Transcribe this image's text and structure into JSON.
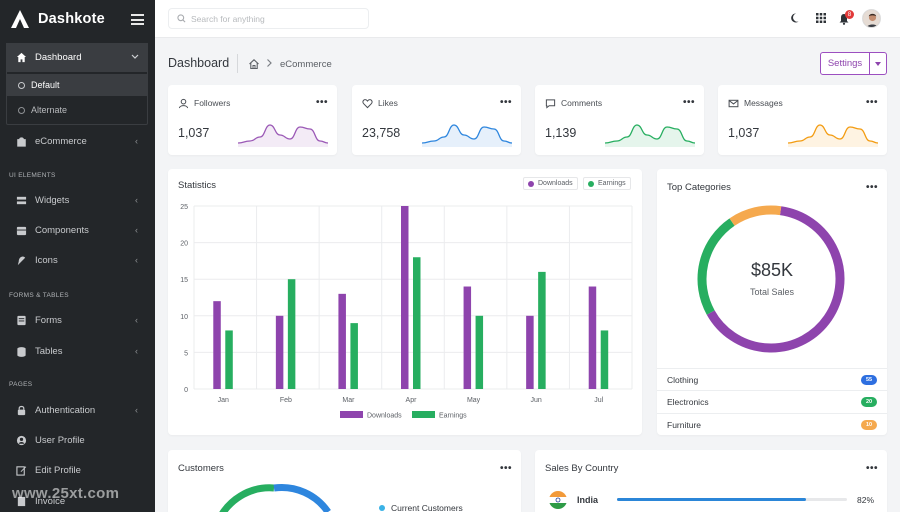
{
  "brand": {
    "name": "Dashkote"
  },
  "sidebar": {
    "dashboard": "Dashboard",
    "default": "Default",
    "alternate": "Alternate",
    "ecommerce": "eCommerce",
    "section_ui": "UI ELEMENTS",
    "widgets": "Widgets",
    "components": "Components",
    "icons": "Icons",
    "section_forms": "FORMS & TABLES",
    "forms": "Forms",
    "tables": "Tables",
    "section_pages": "PAGES",
    "authentication": "Authentication",
    "user_profile": "User Profile",
    "edit_profile": "Edit Profile",
    "invoice": "Invoice"
  },
  "header": {
    "search_placeholder": "Search for anything",
    "notification_count": "8"
  },
  "page": {
    "title": "Dashboard",
    "breadcrumb_current": "eCommerce",
    "settings_label": "Settings"
  },
  "stats": [
    {
      "label": "Followers",
      "value": "1,037",
      "color": "#9b59b6",
      "icon": "user-icon"
    },
    {
      "label": "Likes",
      "value": "23,758",
      "color": "#2e86de",
      "icon": "heart-icon"
    },
    {
      "label": "Comments",
      "value": "1,139",
      "color": "#27ae60",
      "icon": "comment-icon"
    },
    {
      "label": "Messages",
      "value": "1,037",
      "color": "#f39c12",
      "icon": "mail-icon"
    }
  ],
  "statistics": {
    "title": "Statistics",
    "legend": [
      "Downloads",
      "Earnings"
    ],
    "colors": {
      "downloads": "#8e44ad",
      "earnings": "#27ae60"
    }
  },
  "chart_data": {
    "type": "bar",
    "categories": [
      "Jan",
      "Feb",
      "Mar",
      "Apr",
      "May",
      "Jun",
      "Jul"
    ],
    "series": [
      {
        "name": "Downloads",
        "values": [
          12,
          10,
          13,
          25,
          14,
          10,
          14
        ]
      },
      {
        "name": "Earnings",
        "values": [
          8,
          15,
          9,
          18,
          10,
          16,
          8
        ]
      }
    ],
    "yticks": [
      0,
      5,
      10,
      15,
      20,
      25
    ],
    "ylim": [
      0,
      25
    ],
    "grid": true,
    "legend_position": "top-right and bottom"
  },
  "top_categories": {
    "title": "Top Categories",
    "center_value": "$85K",
    "center_label": "Total Sales",
    "segments": [
      {
        "name": "Clothing",
        "value": 55,
        "color": "#8e44ad"
      },
      {
        "name": "Electronics",
        "value": 20,
        "color": "#27ae60"
      },
      {
        "name": "Furniture",
        "value": 10,
        "color": "#f5a94e"
      }
    ],
    "badges": [
      "55",
      "20",
      "10"
    ]
  },
  "customers": {
    "title": "Customers",
    "legend_current": "Current Customers"
  },
  "sales_by_country": {
    "title": "Sales By Country",
    "rows": [
      {
        "country": "India",
        "percent_label": "82%",
        "percent": 82
      }
    ]
  },
  "watermark": "www.25xt.com"
}
